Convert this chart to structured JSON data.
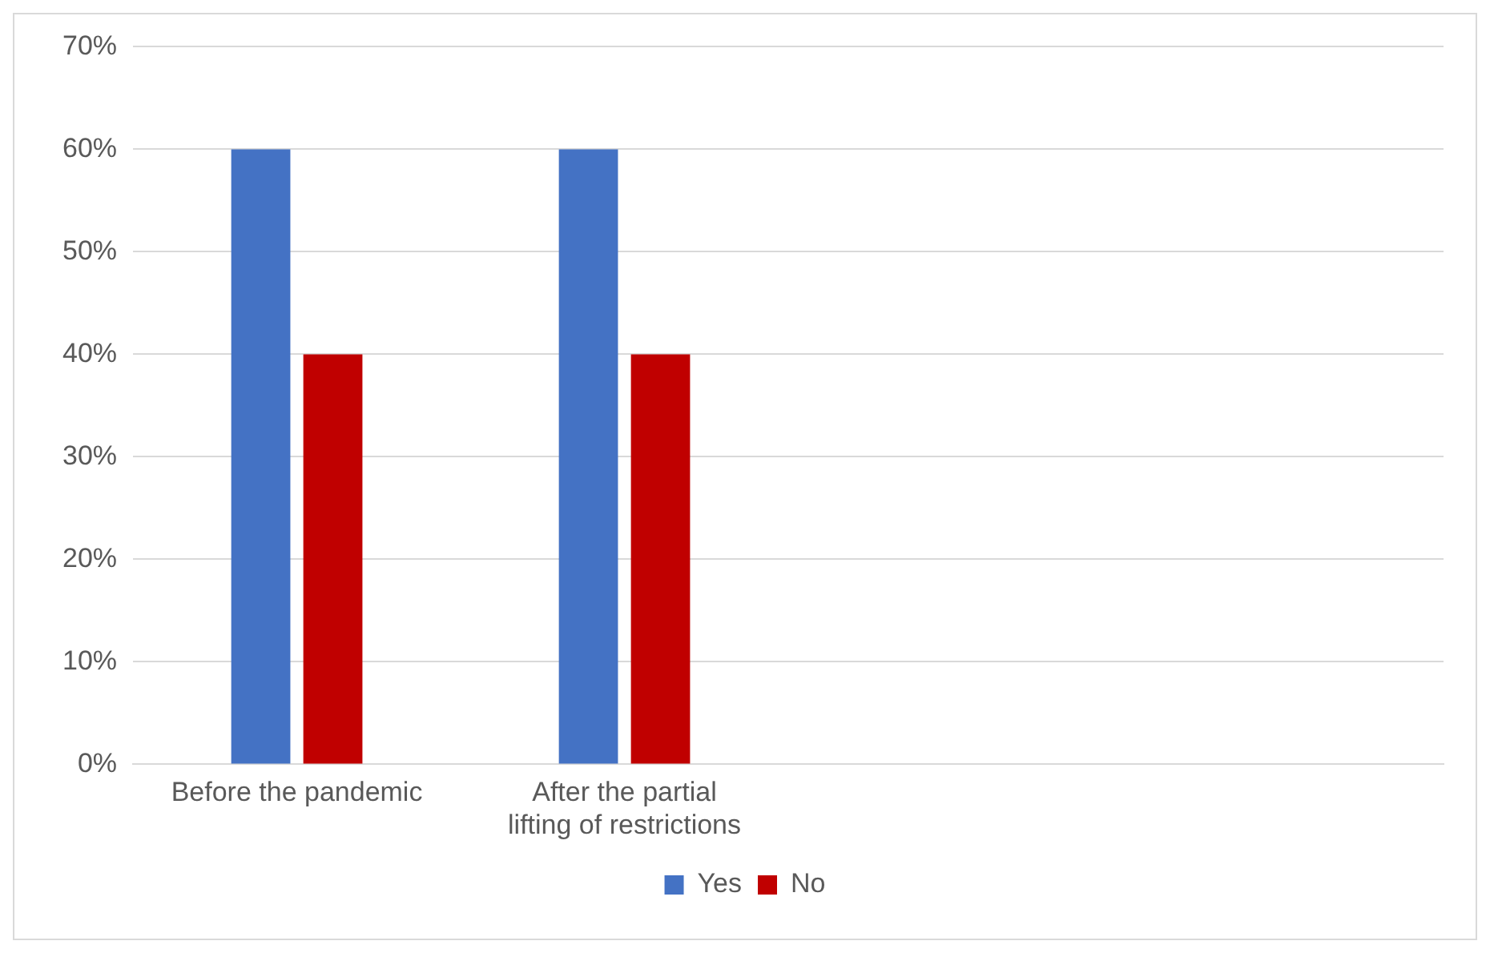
{
  "chart_data": {
    "type": "bar",
    "categories": [
      "Before the pandemic",
      "After the partial lifting of restrictions",
      null,
      null
    ],
    "series": [
      {
        "name": "Yes",
        "color": "#4472c4",
        "values": [
          60,
          60,
          null,
          null
        ]
      },
      {
        "name": "No",
        "color": "#c00000",
        "values": [
          40,
          40,
          null,
          null
        ]
      }
    ],
    "ylim": [
      0,
      70
    ],
    "yticks": [
      {
        "value": 0,
        "label": "0%"
      },
      {
        "value": 10,
        "label": "10%"
      },
      {
        "value": 20,
        "label": "20%"
      },
      {
        "value": 30,
        "label": "30%"
      },
      {
        "value": 40,
        "label": "40%"
      },
      {
        "value": 50,
        "label": "50%"
      },
      {
        "value": 60,
        "label": "60%"
      },
      {
        "value": 70,
        "label": "70%"
      }
    ],
    "grid": "y",
    "legend": "bottom"
  }
}
